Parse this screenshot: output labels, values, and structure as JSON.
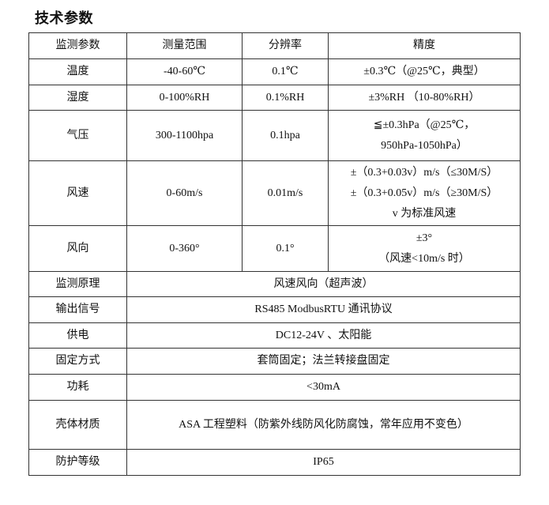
{
  "title": "技术参数",
  "table": {
    "headers": [
      "监测参数",
      "测量范围",
      "分辨率",
      "精度"
    ],
    "rows": [
      {
        "param": "温度",
        "range": "-40-60℃",
        "resolution": "0.1℃",
        "accuracy": [
          "±0.3℃（@25℃，典型）"
        ]
      },
      {
        "param": "湿度",
        "range": "0-100%RH",
        "resolution": "0.1%RH",
        "accuracy": [
          "±3%RH （10-80%RH）"
        ]
      },
      {
        "param": "气压",
        "range": "300-1100hpa",
        "resolution": "0.1hpa",
        "accuracy": [
          "≦±0.3hPa（@25℃，",
          "950hPa-1050hPa）"
        ]
      },
      {
        "param": "风速",
        "range": "0-60m/s",
        "resolution": "0.01m/s",
        "accuracy": [
          "±（0.3+0.03v）m/s（≤30M/S）",
          "±（0.3+0.05v）m/s（≥30M/S）",
          "v 为标准风速"
        ]
      },
      {
        "param": "风向",
        "range": "0-360°",
        "resolution": "0.1°",
        "accuracy": [
          "±3°",
          "（风速<10m/s 时）"
        ]
      }
    ],
    "spec_rows": [
      {
        "label": "监测原理",
        "value": "风速风向（超声波）"
      },
      {
        "label": "输出信号",
        "value": "RS485 ModbusRTU 通讯协议"
      },
      {
        "label": "供电",
        "value": "DC12-24V 、太阳能"
      },
      {
        "label": "固定方式",
        "value": "套筒固定；法兰转接盘固定"
      },
      {
        "label": "功耗",
        "value": "<30mA"
      },
      {
        "label": "壳体材质",
        "value": "ASA 工程塑料（防紫外线防风化防腐蚀，常年应用不变色）"
      },
      {
        "label": "防护等级",
        "value": "IP65"
      }
    ]
  }
}
